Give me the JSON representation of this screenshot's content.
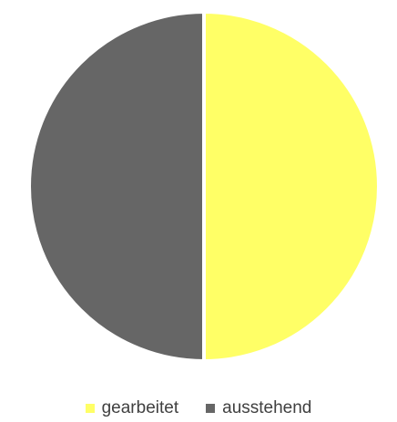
{
  "chart_data": {
    "type": "pie",
    "categories": [
      "gearbeitet",
      "ausstehend"
    ],
    "values": [
      50,
      50
    ],
    "colors": [
      "#FFFF66",
      "#666666"
    ],
    "legend_position": "bottom",
    "start_angle": "12 o'clock, clockwise",
    "slice_separator_color": "#ffffff"
  }
}
